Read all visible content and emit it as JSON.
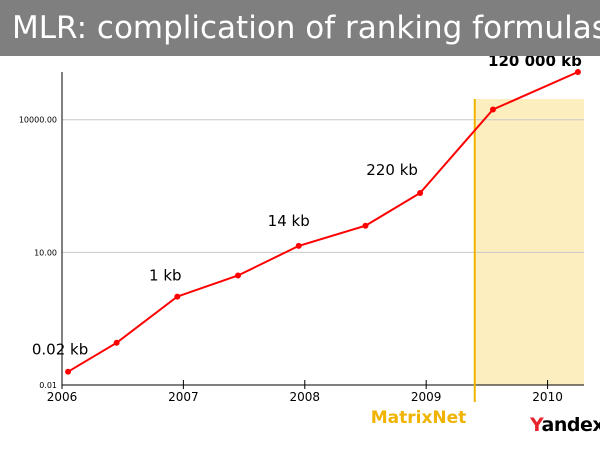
{
  "title": "MLR: complication of ranking formulas",
  "logo_text": "Yandex",
  "colors": {
    "title_bar": "#7f7f7f",
    "series": "#ff0000",
    "highlight_fill": "#fdeec0",
    "highlight_line": "#f0b400",
    "matrixnet_label": "#f0b400",
    "grid": "#c8c8c8"
  },
  "chart_data": {
    "type": "line",
    "title": "MLR: complication of ranking formulas",
    "xlabel": "",
    "ylabel": "",
    "y_scale": "log",
    "ylim": [
      0.01,
      120000
    ],
    "xlim": [
      2006.0,
      2010.3
    ],
    "grid": true,
    "y_ticks": [
      {
        "value": 0.01,
        "label": "0.01"
      },
      {
        "value": 10,
        "label": "10.00"
      },
      {
        "value": 10000,
        "label": "10000.00"
      }
    ],
    "x_ticks": [
      {
        "value": 2006,
        "label": "2006"
      },
      {
        "value": 2007,
        "label": "2007"
      },
      {
        "value": 2008,
        "label": "2008"
      },
      {
        "value": 2009,
        "label": "2009"
      },
      {
        "value": 2010,
        "label": "2010"
      }
    ],
    "series": [
      {
        "points": [
          {
            "x": 2006.05,
            "y": 0.02
          },
          {
            "x": 2006.45,
            "y": 0.09
          },
          {
            "x": 2006.95,
            "y": 1
          },
          {
            "x": 2007.45,
            "y": 3
          },
          {
            "x": 2007.95,
            "y": 14
          },
          {
            "x": 2008.5,
            "y": 40
          },
          {
            "x": 2008.95,
            "y": 220
          },
          {
            "x": 2009.55,
            "y": 17000
          },
          {
            "x": 2010.25,
            "y": 120000
          }
        ]
      }
    ],
    "annotations": [
      {
        "text": "0.02 kb",
        "x": 2006.05,
        "y": 0.02,
        "bold": false
      },
      {
        "text": "1 kb",
        "x": 2006.95,
        "y": 1,
        "bold": false
      },
      {
        "text": "14 kb",
        "x": 2007.95,
        "y": 14,
        "bold": false
      },
      {
        "text": "220 kb",
        "x": 2008.95,
        "y": 220,
        "bold": false
      },
      {
        "text": "120 000 kb",
        "x": 2010.25,
        "y": 120000,
        "bold": true
      }
    ],
    "highlight_region": {
      "x_start": 2009.4,
      "x_end": 2010.3,
      "label": "MatrixNet"
    }
  }
}
